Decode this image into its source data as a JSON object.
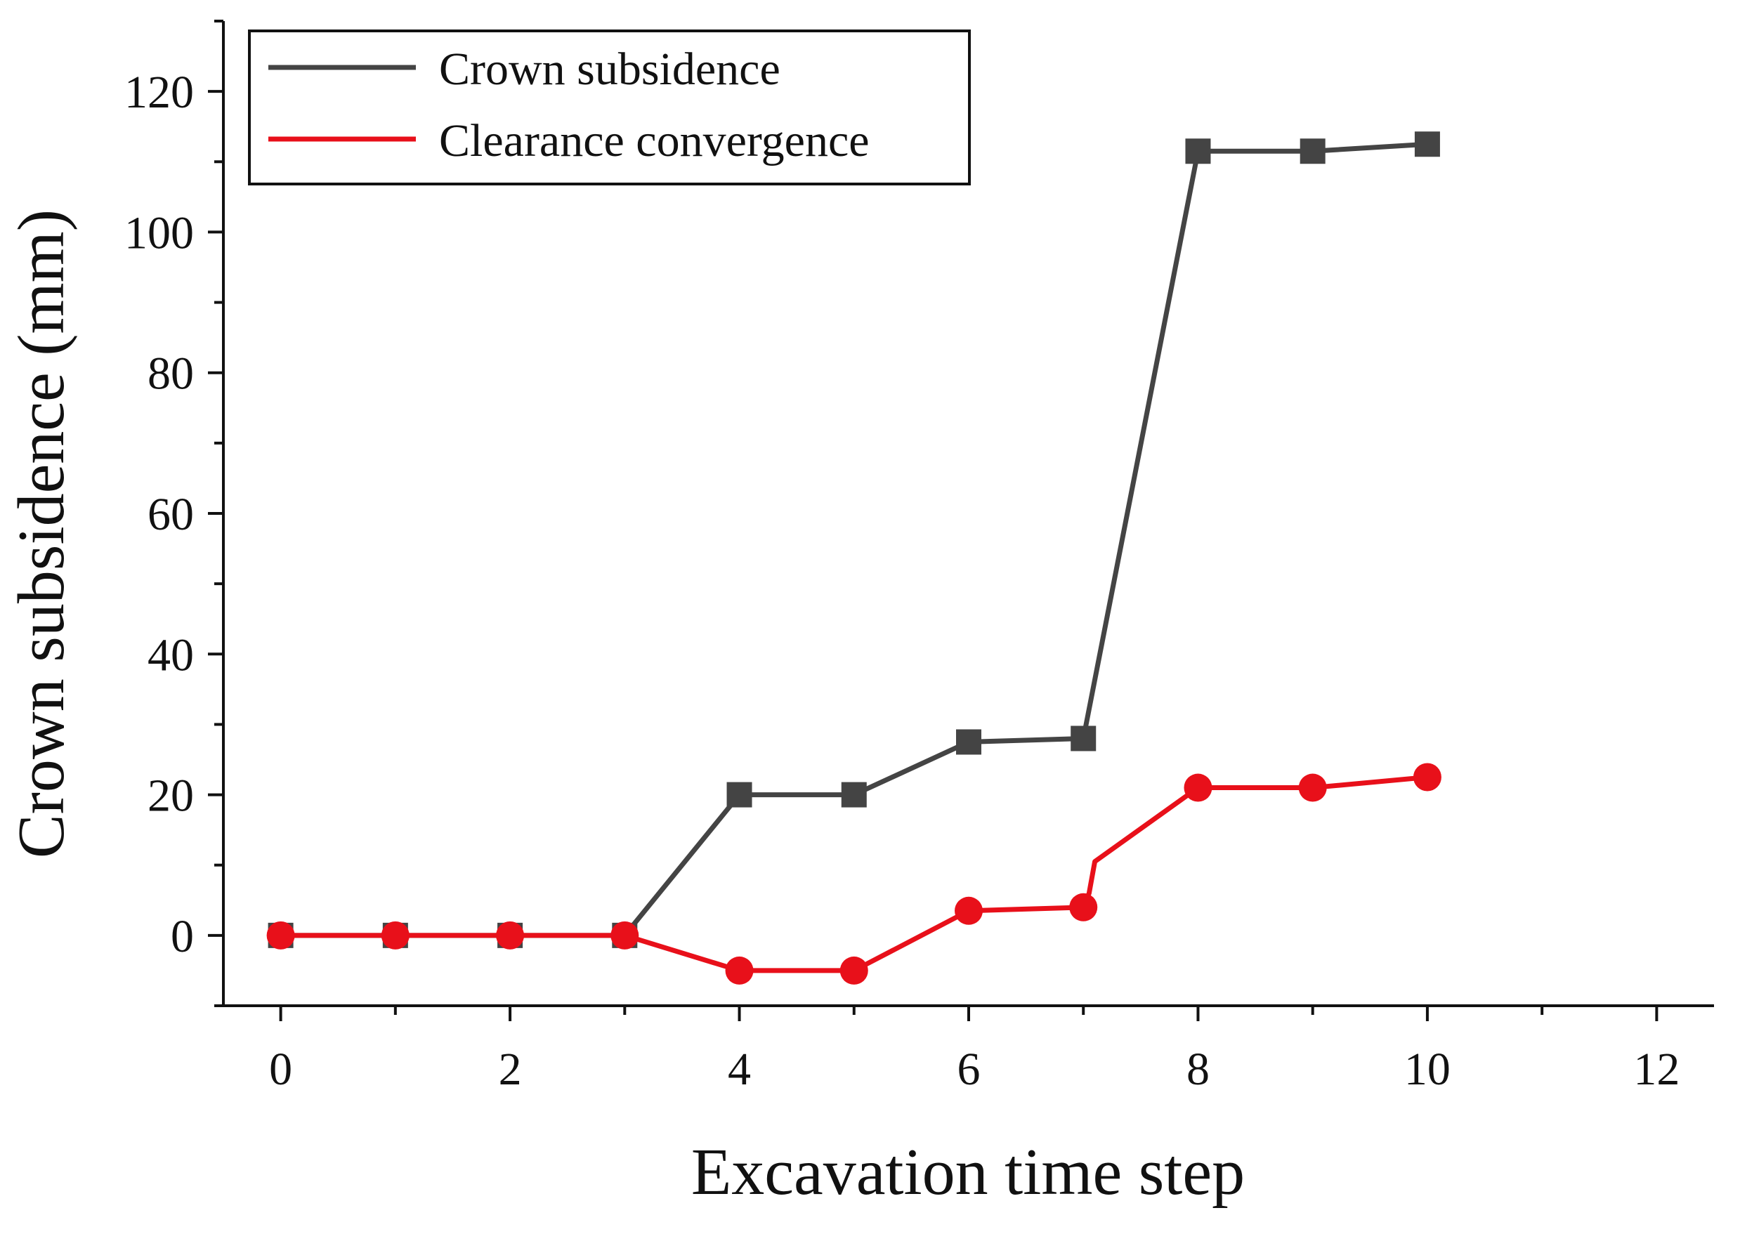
{
  "chart_data": {
    "type": "line",
    "title": "",
    "xlabel": "Excavation time step",
    "ylabel": "Crown subsidence (mm)",
    "xlim": [
      -0.5,
      12.5
    ],
    "ylim": [
      -10,
      130
    ],
    "xticks": [
      0,
      2,
      4,
      6,
      8,
      10,
      12
    ],
    "yticks": [
      0,
      20,
      40,
      60,
      80,
      100,
      120
    ],
    "x_minor_step": 1,
    "y_minor_step": 10,
    "legend_position": "top-left",
    "series": [
      {
        "name": "Crown subsidence",
        "color": "#444444",
        "marker": "square",
        "points": [
          [
            0,
            0
          ],
          [
            1,
            0
          ],
          [
            2,
            0
          ],
          [
            3,
            0
          ],
          [
            4,
            20
          ],
          [
            5,
            20
          ],
          [
            6,
            27.5
          ],
          [
            7,
            28
          ],
          [
            8,
            111.5
          ],
          [
            9,
            111.5
          ],
          [
            10,
            112.5
          ]
        ]
      },
      {
        "name": "Clearance convergence",
        "color": "#e8101a",
        "marker": "circle",
        "points": [
          [
            0,
            0
          ],
          [
            1,
            0
          ],
          [
            2,
            0
          ],
          [
            3,
            0
          ],
          [
            4,
            -5
          ],
          [
            5,
            -5
          ],
          [
            6,
            3.5
          ],
          [
            7,
            4
          ],
          [
            8,
            21
          ],
          [
            9,
            21
          ],
          [
            10,
            22.5
          ]
        ],
        "line_path": [
          [
            0,
            0
          ],
          [
            1,
            0
          ],
          [
            2,
            0
          ],
          [
            3,
            0
          ],
          [
            4,
            -5
          ],
          [
            5,
            -5
          ],
          [
            6,
            3.5
          ],
          [
            7,
            4
          ],
          [
            7.05,
            6
          ],
          [
            7.1,
            10.5
          ],
          [
            8,
            21
          ],
          [
            9,
            21
          ],
          [
            10,
            22.5
          ]
        ]
      }
    ]
  }
}
